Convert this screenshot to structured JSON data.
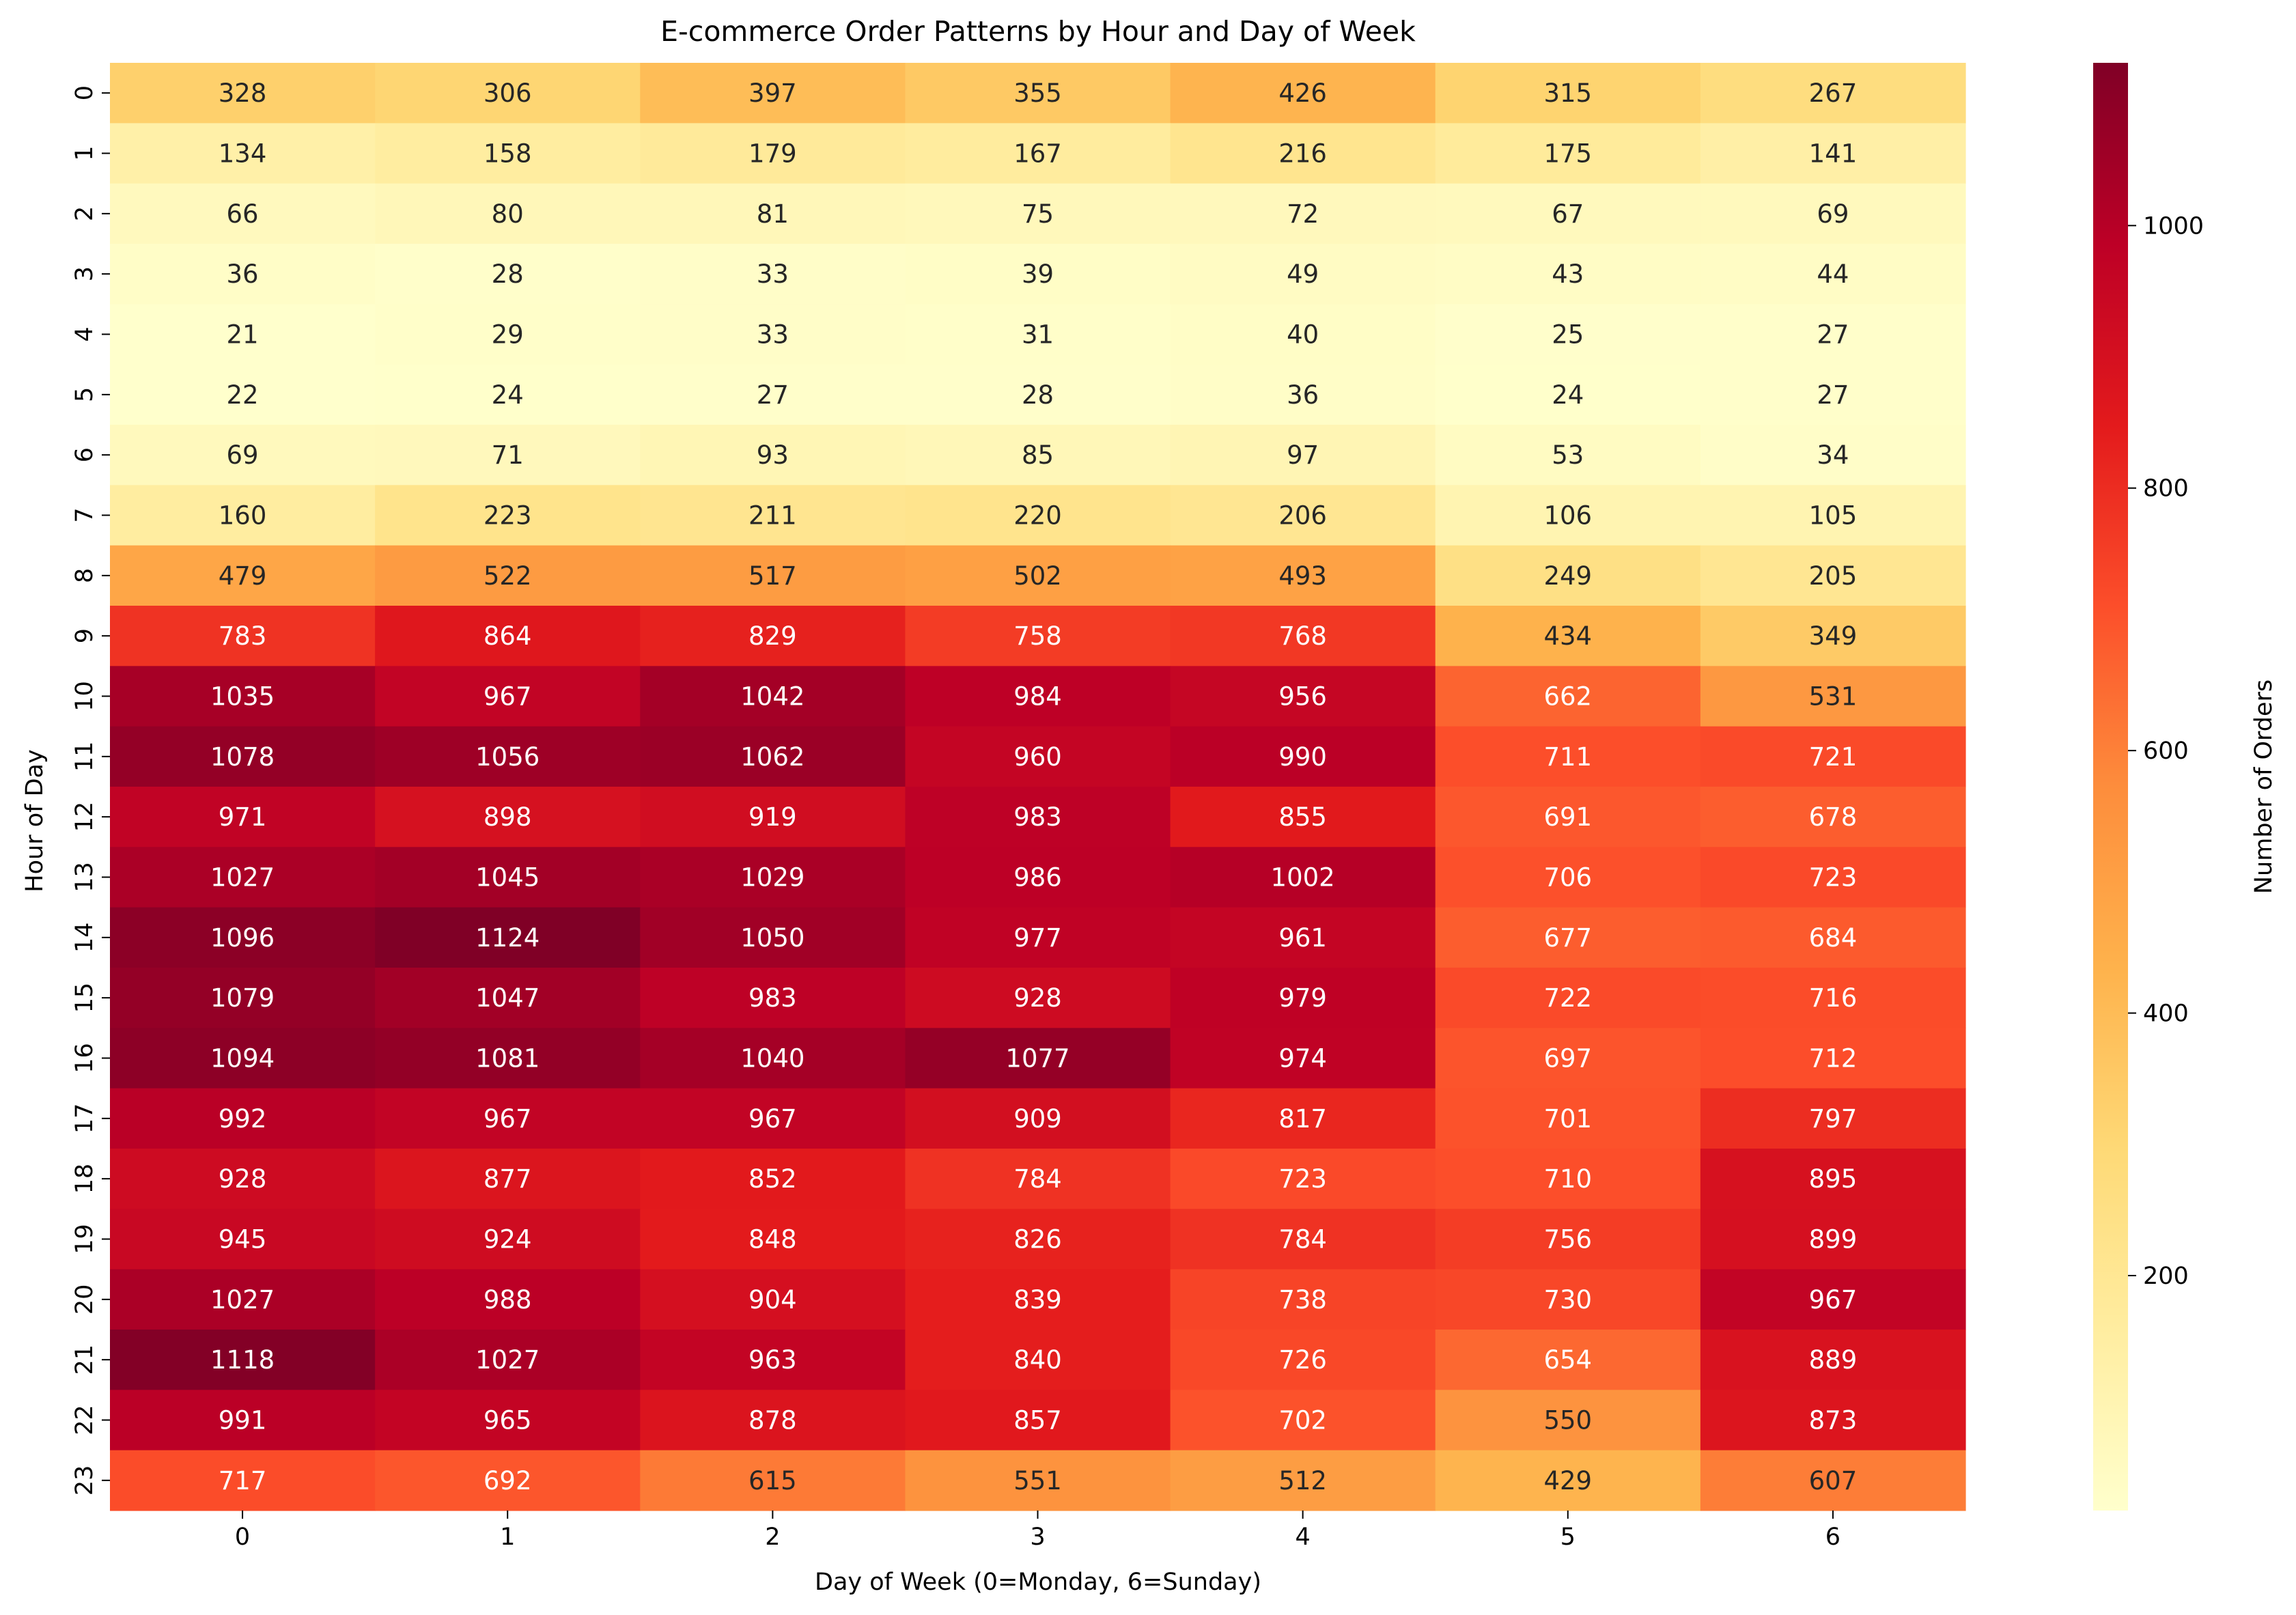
{
  "chart_data": {
    "type": "heatmap",
    "title": "E-commerce Order Patterns by Hour and Day of Week",
    "xlabel": "Day of Week (0=Monday, 6=Sunday)",
    "ylabel": "Hour of Day",
    "colorbar_label": "Number of Orders",
    "colormap": "YlOrRd",
    "x_categories": [
      "0",
      "1",
      "2",
      "3",
      "4",
      "5",
      "6"
    ],
    "y_categories": [
      "0",
      "1",
      "2",
      "3",
      "4",
      "5",
      "6",
      "7",
      "8",
      "9",
      "10",
      "11",
      "12",
      "13",
      "14",
      "15",
      "16",
      "17",
      "18",
      "19",
      "20",
      "21",
      "22",
      "23"
    ],
    "values": [
      [
        328,
        306,
        397,
        355,
        426,
        315,
        267
      ],
      [
        134,
        158,
        179,
        167,
        216,
        175,
        141
      ],
      [
        66,
        80,
        81,
        75,
        72,
        67,
        69
      ],
      [
        36,
        28,
        33,
        39,
        49,
        43,
        44
      ],
      [
        21,
        29,
        33,
        31,
        40,
        25,
        27
      ],
      [
        22,
        24,
        27,
        28,
        36,
        24,
        27
      ],
      [
        69,
        71,
        93,
        85,
        97,
        53,
        34
      ],
      [
        160,
        223,
        211,
        220,
        206,
        106,
        105
      ],
      [
        479,
        522,
        517,
        502,
        493,
        249,
        205
      ],
      [
        783,
        864,
        829,
        758,
        768,
        434,
        349
      ],
      [
        1035,
        967,
        1042,
        984,
        956,
        662,
        531
      ],
      [
        1078,
        1056,
        1062,
        960,
        990,
        711,
        721
      ],
      [
        971,
        898,
        919,
        983,
        855,
        691,
        678
      ],
      [
        1027,
        1045,
        1029,
        986,
        1002,
        706,
        723
      ],
      [
        1096,
        1124,
        1050,
        977,
        961,
        677,
        684
      ],
      [
        1079,
        1047,
        983,
        928,
        979,
        722,
        716
      ],
      [
        1094,
        1081,
        1040,
        1077,
        974,
        697,
        712
      ],
      [
        992,
        967,
        967,
        909,
        817,
        701,
        797
      ],
      [
        928,
        877,
        852,
        784,
        723,
        710,
        895
      ],
      [
        945,
        924,
        848,
        826,
        784,
        756,
        899
      ],
      [
        1027,
        988,
        904,
        839,
        738,
        730,
        967
      ],
      [
        1118,
        1027,
        963,
        840,
        726,
        654,
        889
      ],
      [
        991,
        965,
        878,
        857,
        702,
        550,
        873
      ],
      [
        717,
        692,
        615,
        551,
        512,
        429,
        607
      ]
    ],
    "color_range": [
      21,
      1124
    ],
    "colorbar_ticks": [
      200,
      400,
      600,
      800,
      1000
    ]
  }
}
